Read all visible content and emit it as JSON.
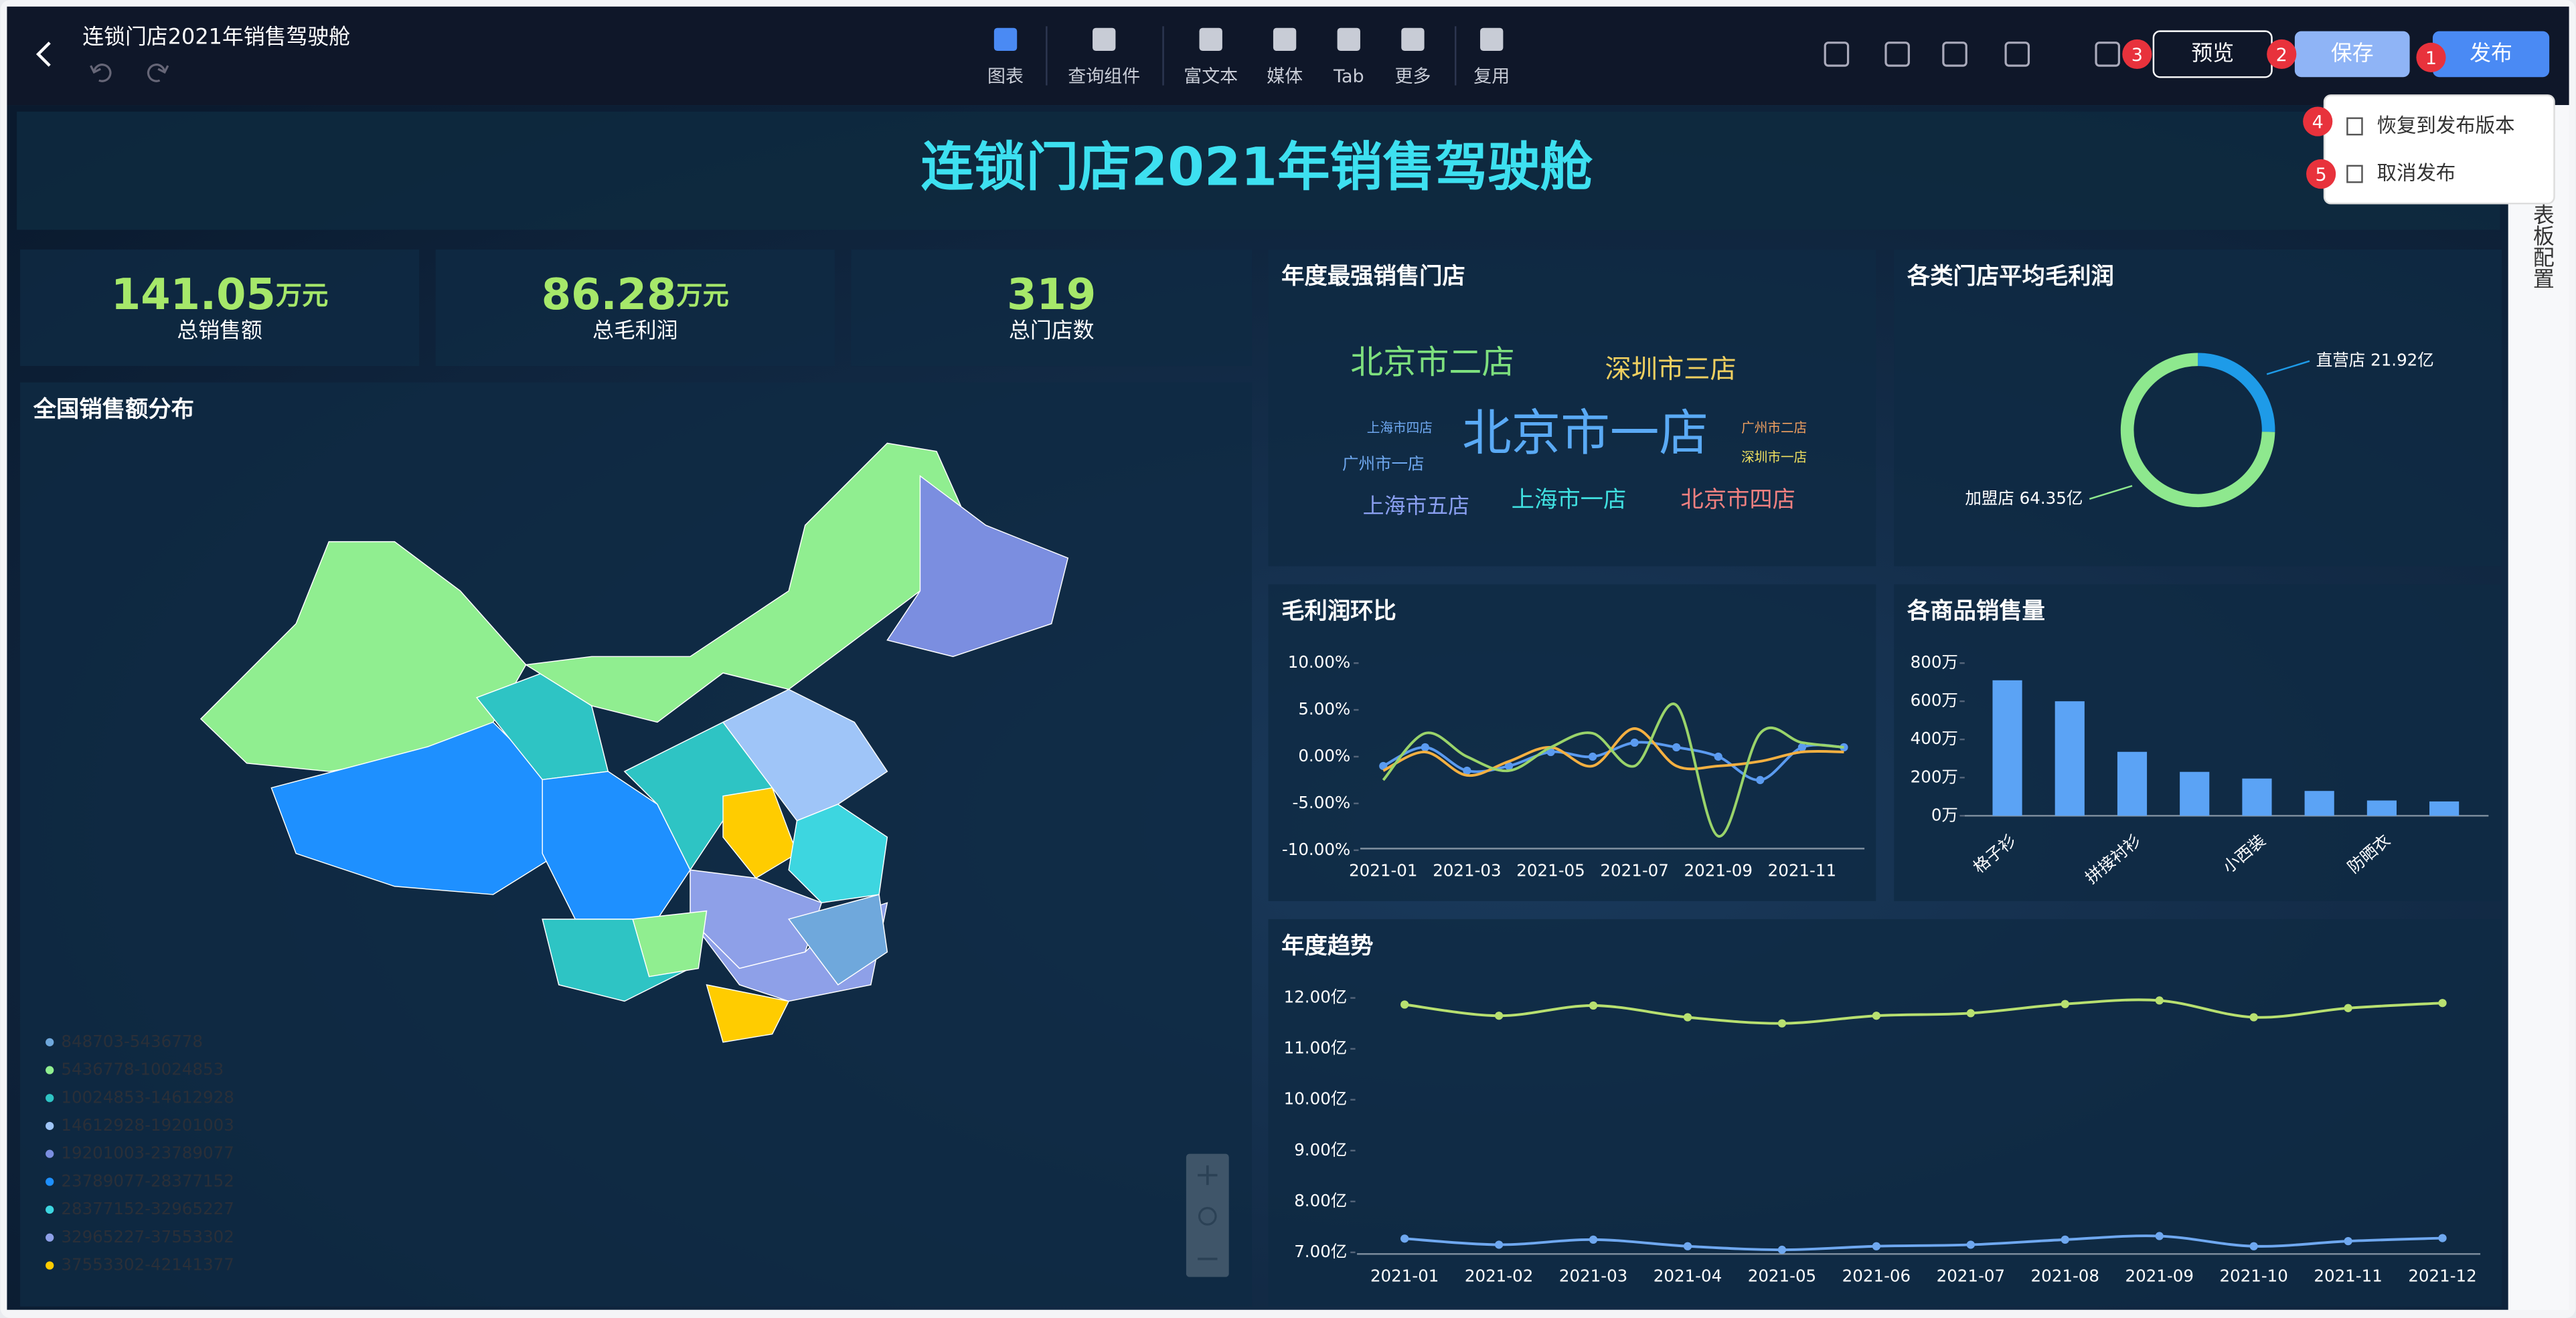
{
  "toolbar": {
    "title": "连锁门店2021年销售驾驶舱",
    "tools": [
      "图表",
      "查询组件",
      "富文本",
      "媒体",
      "Tab",
      "更多",
      "复用"
    ],
    "buttons": {
      "preview": "预览",
      "save": "保存",
      "publish": "发布"
    },
    "badges": [
      1,
      2,
      3,
      4,
      5
    ],
    "menu": [
      "恢复到发布版本",
      "取消发布"
    ],
    "side_panel": "表板配置"
  },
  "dashboard": {
    "title": "连锁门店2021年销售驾驶舱",
    "kpis": [
      {
        "value": 141.05,
        "unit": "万元",
        "label": "总销售额"
      },
      {
        "value": 86.28,
        "unit": "万元",
        "label": "总毛利润"
      },
      {
        "value": 319,
        "label": "总门店数"
      }
    ],
    "map": {
      "title": "全国销售额分布",
      "legend": [
        "848703-5436778",
        "5436778-10024853",
        "10024853-14612928",
        "14612928-19201003",
        "19201003-23789077",
        "23789077-28377152",
        "28377152-32965227",
        "32965227-37553302",
        "37553302-42141377"
      ],
      "colors": [
        "#6fa8dc",
        "#90ee90",
        "#2ec4c4",
        "#9fc5f8",
        "#7b8ee0",
        "#1e90ff",
        "#3dd6e0",
        "#8ea0e8",
        "#ffcc00"
      ]
    },
    "wordcloud": {
      "title": "年度最强销售门店",
      "words": [
        "北京市二店",
        "深圳市三店",
        "上海市四店",
        "北京市一店",
        "广州市二店",
        "广州市一店",
        "深圳市一店",
        "上海市五店",
        "上海市一店",
        "北京市四店"
      ]
    },
    "donut": {
      "type": "pie",
      "title": "各类门店平均毛利润",
      "categories": [
        "直营店",
        "加盟店"
      ],
      "values": [
        21.92,
        64.35
      ],
      "value_labels": [
        "直营店 21.92亿",
        "加盟店 64.35亿"
      ],
      "colors": [
        "#1e9be8",
        "#8ee88e"
      ]
    },
    "gross_ratio": {
      "type": "line",
      "title": "毛利润环比",
      "categories": [
        "2021-01",
        null,
        "2021-03",
        null,
        "2021-05",
        null,
        "2021-07",
        null,
        "2021-09",
        null,
        "2021-11",
        null
      ],
      "ylim": [
        -10,
        10
      ],
      "yticks": [
        {
          "value": 10,
          "label": "10.00%"
        },
        {
          "value": 5,
          "label": "5.00%"
        },
        {
          "value": 0,
          "label": "0.00%"
        },
        {
          "value": -5,
          "label": "-5.00%"
        },
        {
          "value": -10,
          "label": "-10.00%"
        }
      ],
      "series": [
        {
          "color": "#5b9bf0",
          "values": [
            -1,
            1,
            -1.5,
            -1,
            0.5,
            0,
            1.5,
            1,
            0,
            -2.5,
            1,
            1
          ]
        },
        {
          "color": "#f5b041",
          "values": [
            -1.5,
            0.5,
            -2,
            -0.5,
            1,
            -1,
            3,
            -1,
            -1,
            -0.5,
            0.5,
            0.5
          ]
        },
        {
          "color": "#9ad46a",
          "values": [
            -2.5,
            2.5,
            0,
            -1.5,
            1,
            2.5,
            -1,
            5.5,
            -8.5,
            2.5,
            1.5,
            1
          ]
        }
      ]
    },
    "sales": {
      "type": "bar",
      "title": "各商品销售量",
      "categories": [
        "格子衫",
        null,
        "拼接衬衫",
        null,
        "小西装",
        null,
        "防晒衣",
        null
      ],
      "values": [
        710,
        600,
        335,
        230,
        195,
        130,
        80,
        75
      ],
      "color": "#5ba3f5",
      "ylim": [
        0,
        800
      ],
      "yticks": [
        {
          "value": 0,
          "label": "0万"
        },
        {
          "value": 200,
          "label": "200万"
        },
        {
          "value": 400,
          "label": "400万"
        },
        {
          "value": 600,
          "label": "600万"
        },
        {
          "value": 800,
          "label": "800万"
        }
      ]
    },
    "trend": {
      "type": "line",
      "title": "年度趋势",
      "categories": [
        "2021-01",
        "2021-02",
        "2021-03",
        "2021-04",
        "2021-05",
        "2021-06",
        "2021-07",
        "2021-08",
        "2021-09",
        "2021-10",
        "2021-11",
        "2021-12"
      ],
      "ylim": [
        7,
        12
      ],
      "yticks": [
        {
          "value": 12,
          "label": "12.00亿"
        },
        {
          "value": 11,
          "label": "11.00亿"
        },
        {
          "value": 10,
          "label": "10.00亿"
        },
        {
          "value": 9,
          "label": "9.00亿"
        },
        {
          "value": 8,
          "label": "8.00亿"
        },
        {
          "value": 7,
          "label": "7.00亿"
        }
      ],
      "series": [
        {
          "color": "#b8e070",
          "values": [
            11.87,
            11.65,
            11.85,
            11.62,
            11.5,
            11.65,
            11.7,
            11.88,
            11.95,
            11.62,
            11.8,
            11.9
          ]
        },
        {
          "color": "#6fa8f0",
          "values": [
            7.27,
            7.15,
            7.25,
            7.12,
            7.05,
            7.12,
            7.15,
            7.25,
            7.32,
            7.12,
            7.22,
            7.28
          ]
        }
      ]
    }
  }
}
